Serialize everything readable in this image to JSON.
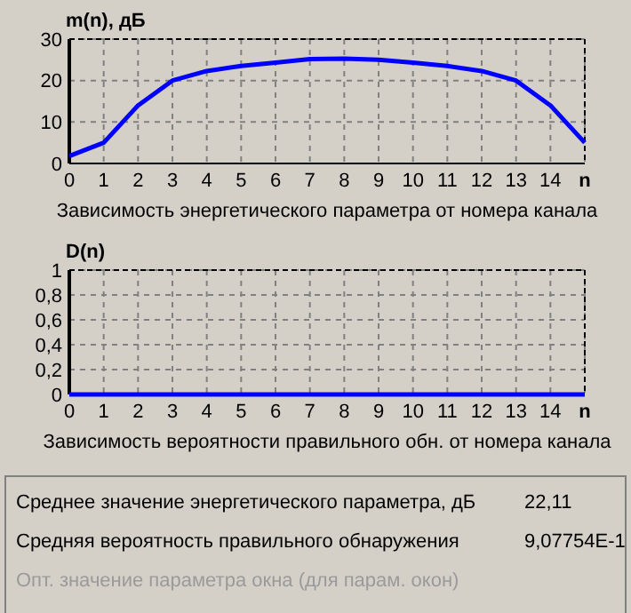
{
  "chart_data": [
    {
      "type": "line",
      "ylabel": "m(n), дБ",
      "xlabel": "Зависимость энергетического параметра от номера канала",
      "x": [
        0,
        1,
        2,
        3,
        4,
        5,
        6,
        7,
        8,
        9,
        10,
        11,
        12,
        13,
        14,
        15
      ],
      "series": [
        {
          "color": "#0000ff",
          "values": [
            1.8,
            5,
            14,
            20,
            22.3,
            23.5,
            24.3,
            25.2,
            25.3,
            25,
            24.3,
            23.5,
            22.3,
            20,
            14,
            5
          ]
        }
      ],
      "xlim": [
        0,
        15
      ],
      "xticks": [
        0,
        1,
        2,
        3,
        4,
        5,
        6,
        7,
        8,
        9,
        10,
        11,
        12,
        13,
        14,
        {
          "value": 15,
          "label": "n"
        }
      ],
      "ylim": [
        0,
        30
      ],
      "yticks": [
        0,
        10,
        20,
        30
      ],
      "grid": true
    },
    {
      "type": "line",
      "ylabel": "D(n)",
      "xlabel": "Зависимость вероятности правильного обн.  от номера канала",
      "x": [
        0,
        1,
        2,
        3,
        4,
        5,
        6,
        7,
        8,
        9,
        10,
        11,
        12,
        13,
        14,
        15
      ],
      "series": [
        {
          "color": "#0000ff",
          "values": [
            0,
            0,
            0,
            0,
            0,
            0,
            0,
            0,
            0,
            0,
            0,
            0,
            0,
            0,
            0,
            0
          ]
        }
      ],
      "xlim": [
        0,
        15
      ],
      "xticks": [
        0,
        1,
        2,
        3,
        4,
        5,
        6,
        7,
        8,
        9,
        10,
        11,
        12,
        13,
        14,
        {
          "value": 15,
          "label": "n"
        }
      ],
      "ylim": [
        0,
        1
      ],
      "yticks": [
        0,
        {
          "value": 0.2,
          "label": "0,2"
        },
        {
          "value": 0.4,
          "label": "0,4"
        },
        {
          "value": 0.6,
          "label": "0,6"
        },
        {
          "value": 0.8,
          "label": "0,8"
        },
        1
      ],
      "grid": true
    },
    {
      "type": "other",
      "annotations": [
        "Среднее значение энергетического параметра, дБ",
        "22,11",
        "Средняя вероятность правильного обнаружения",
        "9,07754E-1",
        "Опт. значение параметра окна (для парам. окон)"
      ]
    }
  ]
}
